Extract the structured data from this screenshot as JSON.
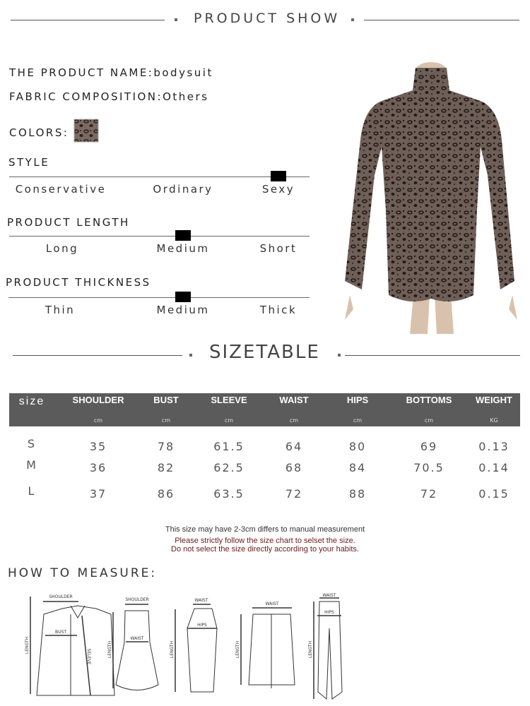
{
  "header": {
    "title": "PRODUCT SHOW"
  },
  "info": {
    "name_label": "THE PRODUCT NAME:",
    "name_value": "bodysuit",
    "fabric_label": "FABRIC COMPOSITION:",
    "fabric_value": "Others",
    "colors_label": "COLORS:",
    "color_swatch": "leopard"
  },
  "scales": [
    {
      "title": "STYLE",
      "options": [
        "Conservative",
        "Ordinary",
        "Sexy"
      ],
      "selected_index": 2
    },
    {
      "title": "PRODUCT LENGTH",
      "options": [
        "Long",
        "Medium",
        "Short"
      ],
      "selected_index": 1
    },
    {
      "title": "PRODUCT THICKNESS",
      "options": [
        "Thin",
        "Medium",
        "Thick"
      ],
      "selected_index": 1
    }
  ],
  "sizetable": {
    "title": "SIZETABLE",
    "columns": [
      {
        "label": "size",
        "unit": ""
      },
      {
        "label": "SHOULDER",
        "unit": "cm"
      },
      {
        "label": "BUST",
        "unit": "cm"
      },
      {
        "label": "SLEEVE",
        "unit": "cm"
      },
      {
        "label": "WAIST",
        "unit": "cm"
      },
      {
        "label": "HIPS",
        "unit": "cm"
      },
      {
        "label": "BOTTOMS",
        "unit": "cm"
      },
      {
        "label": "WEIGHT",
        "unit": "KG"
      }
    ],
    "rows": [
      [
        "S",
        "35",
        "78",
        "61.5",
        "64",
        "80",
        "69",
        "0.13"
      ],
      [
        "M",
        "36",
        "82",
        "62.5",
        "68",
        "84",
        "70.5",
        "0.14"
      ],
      [
        "L",
        "37",
        "86",
        "63.5",
        "72",
        "88",
        "72",
        "0.15"
      ]
    ],
    "header_color": "#5b5b5b"
  },
  "notes": {
    "line1": "This size may have 2-3cm differs to manual measurement",
    "line2": "Please strictly follow the size chart to selset the size.",
    "line3": "Do not select the size directly according to your habits.",
    "warn_color": "#6b1a1a"
  },
  "measure": {
    "title": "HOW TO MEASURE:",
    "jacket": {
      "shoulder": "SHOULDER",
      "bust": "BUST",
      "length": "LENGTH",
      "sleeve": "SELEVE"
    },
    "dress": {
      "shoulder": "SHOULDER",
      "waist": "WAIST",
      "length": "LENGTH"
    },
    "skirt": {
      "waist": "WAIST",
      "hips": "HIPS",
      "length": "LENGTH"
    },
    "shorts": {
      "waist": "WAIST",
      "length": "LENGTH"
    },
    "pants": {
      "waist": "WAIST",
      "hips": "HIPS",
      "length": "LENGTH"
    }
  }
}
